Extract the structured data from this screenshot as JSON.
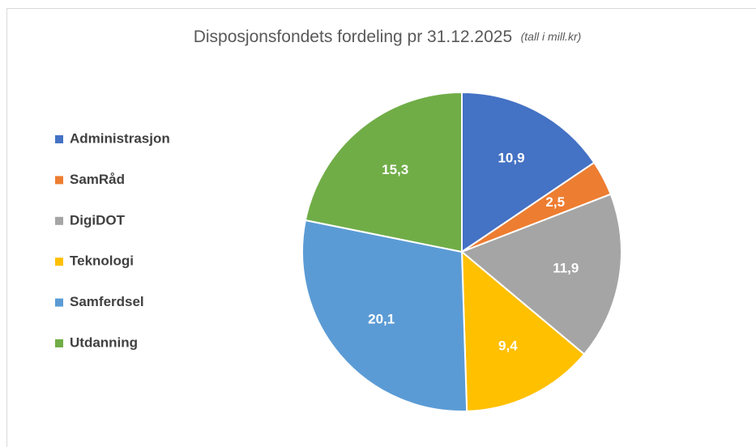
{
  "chart_data": {
    "type": "pie",
    "title": "Disposjonsfondets fordeling pr 31.12.2025",
    "subtitle": "(tall i mill.kr)",
    "categories": [
      "Administrasjon",
      "SamRåd",
      "DigiDOT",
      "Teknologi",
      "Samferdsel",
      "Utdanning"
    ],
    "values": [
      10.9,
      2.5,
      11.9,
      9.4,
      20.1,
      15.3
    ],
    "value_labels": [
      "10,9",
      "2,5",
      "11,9",
      "9,4",
      "20,1",
      "15,3"
    ],
    "colors": [
      "#4472c4",
      "#ed7d31",
      "#a5a5a5",
      "#ffc000",
      "#5b9bd5",
      "#70ad47"
    ],
    "legend": "left"
  }
}
